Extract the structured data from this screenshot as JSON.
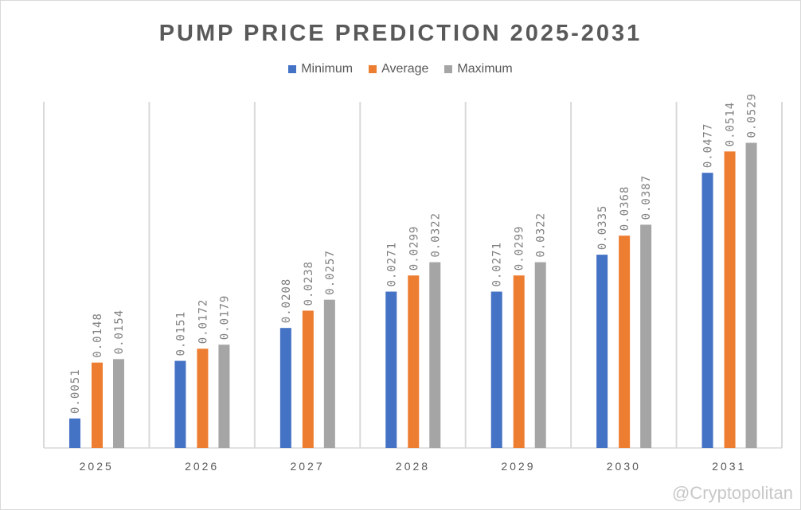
{
  "chart_data": {
    "type": "bar",
    "title": "PUMP PRICE PREDICTION 2025-2031",
    "categories": [
      "2025",
      "2026",
      "2027",
      "2028",
      "2029",
      "2030",
      "2031"
    ],
    "series": [
      {
        "name": "Minimum",
        "color": "#4472c4",
        "values": [
          0.0051,
          0.0151,
          0.0208,
          0.0271,
          0.0271,
          0.0335,
          0.0477
        ]
      },
      {
        "name": "Average",
        "color": "#ed7d31",
        "values": [
          0.0148,
          0.0172,
          0.0238,
          0.0299,
          0.0299,
          0.0368,
          0.0514
        ]
      },
      {
        "name": "Maximum",
        "color": "#a5a5a5",
        "values": [
          0.0154,
          0.0179,
          0.0257,
          0.0322,
          0.0322,
          0.0387,
          0.0529
        ]
      }
    ],
    "ylim": [
      0,
      0.06
    ],
    "xlabel": "",
    "ylabel": "",
    "legend": "top",
    "grid": "vertical category separators"
  },
  "watermark": "@Cryptopolitan"
}
